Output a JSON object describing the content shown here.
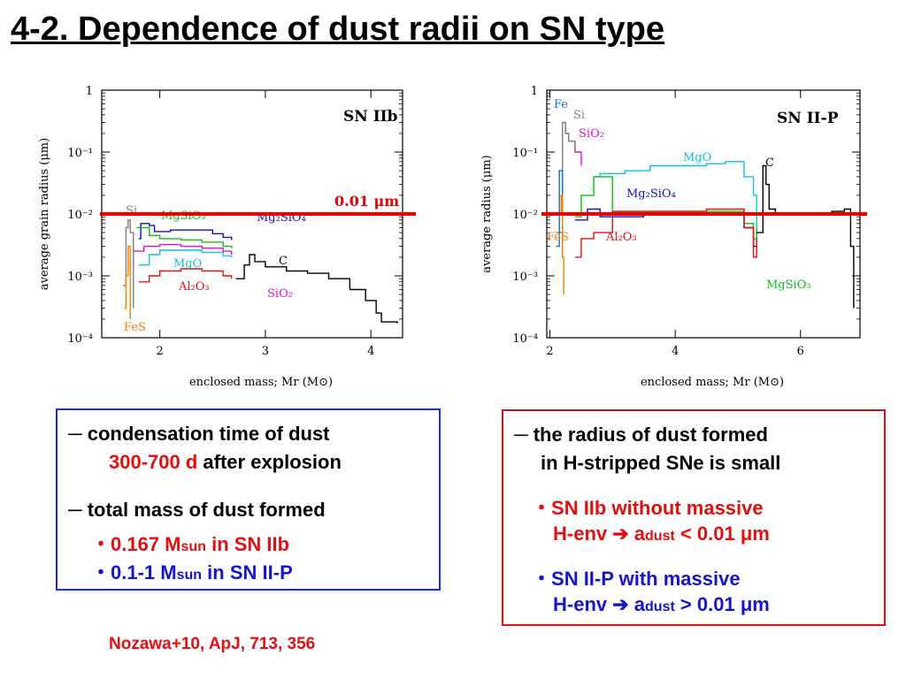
{
  "title": "4-2. Dependence of dust radii on SN type",
  "chart_data": [
    {
      "type": "line",
      "label": "SN IIb",
      "xlabel": "enclosed mass; Mr (M⊙)",
      "ylabel": "average grain radius (μm)",
      "xlim": [
        1.45,
        4.3
      ],
      "ylim": [
        0.0001,
        1
      ],
      "yscale": "log",
      "xticks": [
        "2",
        "3",
        "4"
      ],
      "yticks": [
        "1",
        "10⁻¹",
        "10⁻²",
        "10⁻³",
        "10⁻⁴"
      ],
      "threshold": {
        "value": 0.01,
        "label": "0.01 μm",
        "color": "#e00000"
      },
      "series": [
        {
          "name": "Mg2SiO4",
          "color": "#1010c0",
          "x": [
            1.8,
            1.82,
            1.9,
            1.95,
            2.1,
            2.3,
            2.5,
            2.6,
            2.68
          ],
          "y": [
            0.004,
            0.007,
            0.0065,
            0.0052,
            0.0055,
            0.0055,
            0.0048,
            0.0042,
            0.0038
          ]
        },
        {
          "name": "MgSiO3",
          "color": "#10c010",
          "x": [
            1.78,
            1.9,
            2.0,
            2.2,
            2.4,
            2.6,
            2.68
          ],
          "y": [
            0.006,
            0.0045,
            0.004,
            0.0038,
            0.0035,
            0.003,
            0.0028
          ]
        },
        {
          "name": "MgO",
          "color": "#10c0e0",
          "x": [
            1.8,
            1.9,
            2.0,
            2.2,
            2.4,
            2.6,
            2.68
          ],
          "y": [
            0.0015,
            0.0022,
            0.0026,
            0.0026,
            0.0024,
            0.0021,
            0.002
          ]
        },
        {
          "name": "SiO2",
          "color": "#e010e0",
          "x": [
            1.75,
            1.85,
            2.0,
            2.2,
            2.4,
            2.6,
            2.68
          ],
          "y": [
            0.0025,
            0.003,
            0.0032,
            0.003,
            0.0028,
            0.0025,
            0.0022
          ]
        },
        {
          "name": "Al2O3",
          "color": "#e01010",
          "x": [
            1.8,
            1.9,
            2.0,
            2.2,
            2.4,
            2.6,
            2.68
          ],
          "y": [
            0.0008,
            0.001,
            0.0012,
            0.0013,
            0.0012,
            0.001,
            0.0009
          ]
        },
        {
          "name": "C",
          "color": "#000000",
          "x": [
            2.72,
            2.8,
            2.85,
            2.9,
            3.0,
            3.2,
            3.4,
            3.6,
            3.8,
            3.95,
            4.05,
            4.1,
            4.25
          ],
          "y": [
            0.0009,
            0.0015,
            0.0022,
            0.0017,
            0.0014,
            0.0012,
            0.0011,
            0.0009,
            0.0006,
            0.0004,
            0.00025,
            0.00018,
            0.00017
          ]
        },
        {
          "name": "Si",
          "color": "#808080",
          "x": [
            1.65,
            1.68,
            1.7,
            1.72,
            1.75
          ],
          "y": [
            0.0007,
            0.006,
            0.008,
            0.005,
            0.0003
          ]
        },
        {
          "name": "FeS",
          "color": "#f08000",
          "x": [
            1.66,
            1.68,
            1.7,
            1.72
          ],
          "y": [
            0.0003,
            0.001,
            0.003,
            0.0002
          ]
        }
      ]
    },
    {
      "type": "line",
      "label": "SN II-P",
      "xlabel": "enclosed mass; Mr (M⊙)",
      "ylabel": "average radius (μm)",
      "xlim": [
        1.95,
        6.95
      ],
      "ylim": [
        0.0001,
        1
      ],
      "yscale": "log",
      "xticks": [
        "2",
        "4",
        "6"
      ],
      "yticks": [
        "1",
        "10⁻¹",
        "10⁻²",
        "10⁻³",
        "10⁻⁴"
      ],
      "threshold": {
        "value": 0.01,
        "color": "#e00000"
      },
      "series": [
        {
          "name": "MgO",
          "color": "#10c0e0",
          "x": [
            2.7,
            2.8,
            3.2,
            3.6,
            4.0,
            4.5,
            4.8,
            5.0,
            5.1,
            5.25,
            5.3
          ],
          "y": [
            0.04,
            0.045,
            0.05,
            0.06,
            0.06,
            0.065,
            0.07,
            0.07,
            0.04,
            0.02,
            0.003
          ]
        },
        {
          "name": "Mg2SiO4",
          "color": "#1010c0",
          "x": [
            2.4,
            2.6,
            2.8,
            3.0,
            3.5,
            4.0,
            4.5,
            4.9,
            5.1,
            5.25,
            5.3
          ],
          "y": [
            0.008,
            0.012,
            0.009,
            0.009,
            0.01,
            0.01,
            0.01,
            0.01,
            0.006,
            0.003,
            0.005
          ]
        },
        {
          "name": "MgSiO3",
          "color": "#10c010",
          "x": [
            2.4,
            2.5,
            2.7,
            3.0,
            3.5,
            4.0,
            4.5,
            4.9,
            5.1,
            5.25,
            5.3
          ],
          "y": [
            0.009,
            0.02,
            0.04,
            0.011,
            0.011,
            0.011,
            0.011,
            0.011,
            0.007,
            0.004,
            0.006
          ]
        },
        {
          "name": "Al2O3",
          "color": "#e01010",
          "x": [
            2.4,
            2.5,
            2.7,
            3.0,
            3.5,
            4.0,
            4.5,
            4.9,
            5.1,
            5.25,
            5.3
          ],
          "y": [
            0.002,
            0.004,
            0.005,
            0.011,
            0.011,
            0.011,
            0.012,
            0.012,
            0.006,
            0.002,
            0.004
          ]
        },
        {
          "name": "SiO2",
          "color": "#e010e0",
          "x": [
            2.2,
            2.25,
            2.3,
            2.4,
            2.5
          ],
          "y": [
            0.3,
            0.2,
            0.15,
            0.1,
            0.06
          ]
        },
        {
          "name": "Si",
          "color": "#808080",
          "x": [
            2.1,
            2.2,
            2.25,
            2.3,
            2.4
          ],
          "y": [
            0.005,
            0.3,
            0.2,
            0.15,
            0.1
          ]
        },
        {
          "name": "Fe",
          "color": "#1070c0",
          "x": [
            2.1,
            2.15,
            2.2
          ],
          "y": [
            0.003,
            0.05,
            0.02
          ]
        },
        {
          "name": "FeS",
          "color": "#f08000",
          "x": [
            2.15,
            2.18,
            2.2,
            2.22
          ],
          "y": [
            0.01,
            0.02,
            0.002,
            0.0005
          ]
        },
        {
          "name": "C",
          "color": "#000000",
          "x": [
            5.3,
            5.4,
            5.45,
            5.5,
            5.6,
            6.0,
            6.5,
            6.7,
            6.8,
            6.85
          ],
          "y": [
            0.005,
            0.06,
            0.03,
            0.012,
            0.01,
            0.01,
            0.011,
            0.012,
            0.003,
            0.0003
          ]
        }
      ]
    }
  ],
  "labels_left": [
    "SN IIb",
    "0.01 μm"
  ],
  "labels_right": [
    "SN II-P"
  ],
  "box_left": {
    "l1_dash": "─",
    "l1": "condensation time of dust",
    "l2_red": "300-700 d",
    "l2_rest": " after explosion",
    "l3_dash": "─",
    "l3": "total mass of dust formed",
    "l4_dot": "・",
    "l4_a": "0.167 M",
    "l4_sub": "sun",
    "l4_b": " in SN IIb",
    "l5_dot": "・",
    "l5_a": "0.1-1 M",
    "l5_sub": "sun",
    "l5_b": " in SN II-P"
  },
  "box_right": {
    "l1_dash": "─",
    "l1": "the radius of dust formed",
    "l2": "in H-stripped SNe is small",
    "l3_dot": "・",
    "l3": "SN IIb without massive",
    "l4_a": "H-env ➔ a",
    "l4_sub": "dust",
    "l4_b": " < 0.01 μm",
    "l5_dot": "・",
    "l5": "SN II-P with massive",
    "l6_a": "H-env ➔ a",
    "l6_sub": "dust",
    "l6_b": " > 0.01 μm"
  },
  "reference": "Nozawa+10, ApJ, 713, 356"
}
